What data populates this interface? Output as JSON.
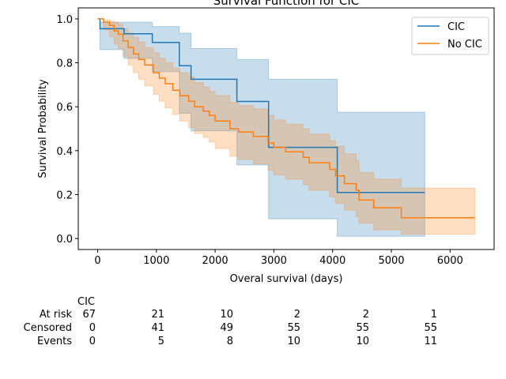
{
  "chart_data": {
    "type": "line",
    "title": "Survival Function for CIC",
    "xlabel": "Overal survival (days)",
    "ylabel": "Survival Probability",
    "xlim": [
      -330,
      6750
    ],
    "ylim": [
      -0.05,
      1.05
    ],
    "xticks": [
      0,
      1000,
      2000,
      3000,
      4000,
      5000,
      6000
    ],
    "xtick_labels": [
      "0",
      "1000",
      "2000",
      "3000",
      "4000",
      "5000",
      "6000"
    ],
    "yticks": [
      0.0,
      0.2,
      0.4,
      0.6,
      0.8,
      1.0
    ],
    "ytick_labels": [
      "0.0",
      "0.2",
      "0.4",
      "0.6",
      "0.8",
      "1.0"
    ],
    "legend_position": "top-right",
    "grid": false,
    "series": [
      {
        "name": "CIC",
        "color": "#1f77b4",
        "x": [
          0,
          40,
          450,
          930,
          1390,
          1590,
          2370,
          2910,
          4080,
          5570
        ],
        "y": [
          1.0,
          0.955,
          0.932,
          0.893,
          0.787,
          0.725,
          0.624,
          0.415,
          0.21,
          0.21
        ],
        "ci_lower": [
          1.0,
          0.86,
          0.82,
          0.76,
          0.57,
          0.49,
          0.335,
          0.09,
          0.01,
          0.01
        ],
        "ci_upper": [
          1.0,
          0.985,
          0.985,
          0.965,
          0.935,
          0.865,
          0.815,
          0.725,
          0.575,
          0.575
        ]
      },
      {
        "name": "No CIC",
        "color": "#ff7f0e",
        "x": [
          0,
          100,
          200,
          280,
          350,
          430,
          520,
          610,
          700,
          800,
          950,
          1050,
          1150,
          1280,
          1400,
          1550,
          1650,
          1800,
          1900,
          2000,
          2250,
          2400,
          2650,
          2900,
          3000,
          3200,
          3500,
          3600,
          3950,
          4050,
          4200,
          4400,
          4450,
          4700,
          5170,
          6420
        ],
        "y": [
          1.0,
          0.985,
          0.97,
          0.945,
          0.93,
          0.9,
          0.87,
          0.84,
          0.815,
          0.79,
          0.755,
          0.73,
          0.705,
          0.675,
          0.65,
          0.625,
          0.6,
          0.58,
          0.56,
          0.535,
          0.5,
          0.485,
          0.465,
          0.435,
          0.415,
          0.395,
          0.37,
          0.345,
          0.315,
          0.285,
          0.25,
          0.22,
          0.175,
          0.14,
          0.095,
          0.095
        ],
        "ci_lower": [
          1.0,
          0.95,
          0.92,
          0.885,
          0.865,
          0.83,
          0.79,
          0.755,
          0.725,
          0.695,
          0.655,
          0.625,
          0.595,
          0.565,
          0.535,
          0.505,
          0.48,
          0.46,
          0.44,
          0.41,
          0.375,
          0.36,
          0.34,
          0.31,
          0.29,
          0.27,
          0.245,
          0.22,
          0.19,
          0.16,
          0.13,
          0.1,
          0.07,
          0.04,
          0.02,
          0.02
        ],
        "ci_upper": [
          1.0,
          0.995,
          0.99,
          0.985,
          0.975,
          0.955,
          0.935,
          0.915,
          0.895,
          0.87,
          0.845,
          0.82,
          0.8,
          0.775,
          0.755,
          0.735,
          0.71,
          0.69,
          0.67,
          0.65,
          0.62,
          0.605,
          0.59,
          0.56,
          0.54,
          0.52,
          0.5,
          0.475,
          0.445,
          0.42,
          0.385,
          0.355,
          0.3,
          0.27,
          0.23,
          0.23
        ]
      }
    ],
    "risk_table": {
      "group_label": "CIC",
      "rows": [
        {
          "label": "At risk",
          "values": [
            "67",
            "21",
            "10",
            "2",
            "2",
            "1"
          ]
        },
        {
          "label": "Censored",
          "values": [
            "0",
            "41",
            "49",
            "55",
            "55",
            "55"
          ]
        },
        {
          "label": "Events",
          "values": [
            "0",
            "5",
            "8",
            "10",
            "10",
            "11"
          ]
        }
      ]
    }
  }
}
